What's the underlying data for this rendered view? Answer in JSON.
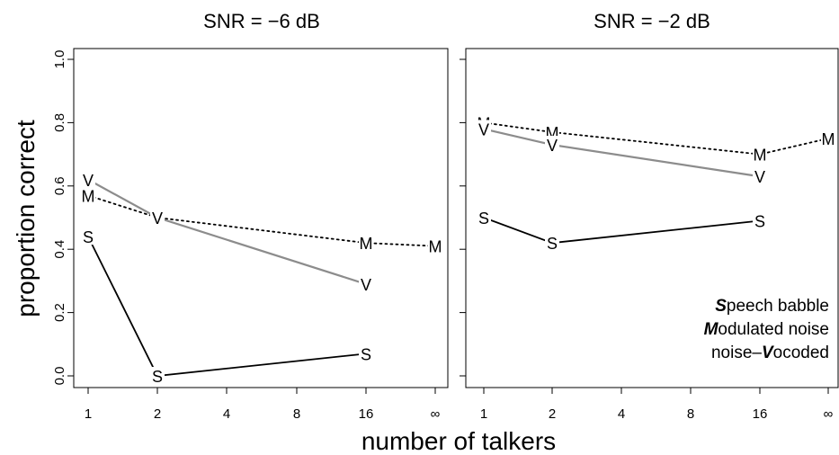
{
  "chart_data": {
    "type": "line",
    "ylabel": "proportion correct",
    "xlabel": "number of talkers",
    "x_tick_labels": [
      "1",
      "2",
      "4",
      "8",
      "16",
      "∞"
    ],
    "y_tick_labels": [
      "0.0",
      "0.2",
      "0.4",
      "0.6",
      "0.8",
      "1.0"
    ],
    "ylim": [
      0,
      1.0
    ],
    "grid": false,
    "panels": [
      {
        "title": "SNR = −6 dB",
        "series": [
          {
            "marker": "S",
            "color": "#000000",
            "dash": "solid",
            "x": [
              "1",
              "2",
              "16"
            ],
            "values": [
              0.44,
              0.0,
              0.07
            ]
          },
          {
            "marker": "M",
            "color": "#000000",
            "dash": "dotted",
            "x": [
              "1",
              "2",
              "16",
              "∞"
            ],
            "values": [
              0.57,
              0.5,
              0.42,
              0.41
            ]
          },
          {
            "marker": "V",
            "color": "#8c8c8c",
            "dash": "solid",
            "x": [
              "1",
              "2",
              "16"
            ],
            "values": [
              0.62,
              0.5,
              0.29
            ]
          }
        ]
      },
      {
        "title": "SNR = −2 dB",
        "series": [
          {
            "marker": "S",
            "color": "#000000",
            "dash": "solid",
            "x": [
              "1",
              "2",
              "16"
            ],
            "values": [
              0.5,
              0.42,
              0.49
            ]
          },
          {
            "marker": "M",
            "color": "#000000",
            "dash": "dotted",
            "x": [
              "1",
              "2",
              "16",
              "∞"
            ],
            "values": [
              0.8,
              0.77,
              0.7,
              0.75
            ]
          },
          {
            "marker": "V",
            "color": "#8c8c8c",
            "dash": "solid",
            "x": [
              "1",
              "2",
              "16"
            ],
            "values": [
              0.78,
              0.73,
              0.63
            ]
          }
        ]
      }
    ],
    "legend": {
      "placement": "bottom-right",
      "entries": [
        {
          "bold": "S",
          "prefix": "",
          "rest": "peech babble"
        },
        {
          "bold": "M",
          "prefix": "",
          "rest": "odulated noise"
        },
        {
          "bold": "V",
          "prefix": "noise–",
          "rest": "ocoded"
        }
      ]
    }
  }
}
